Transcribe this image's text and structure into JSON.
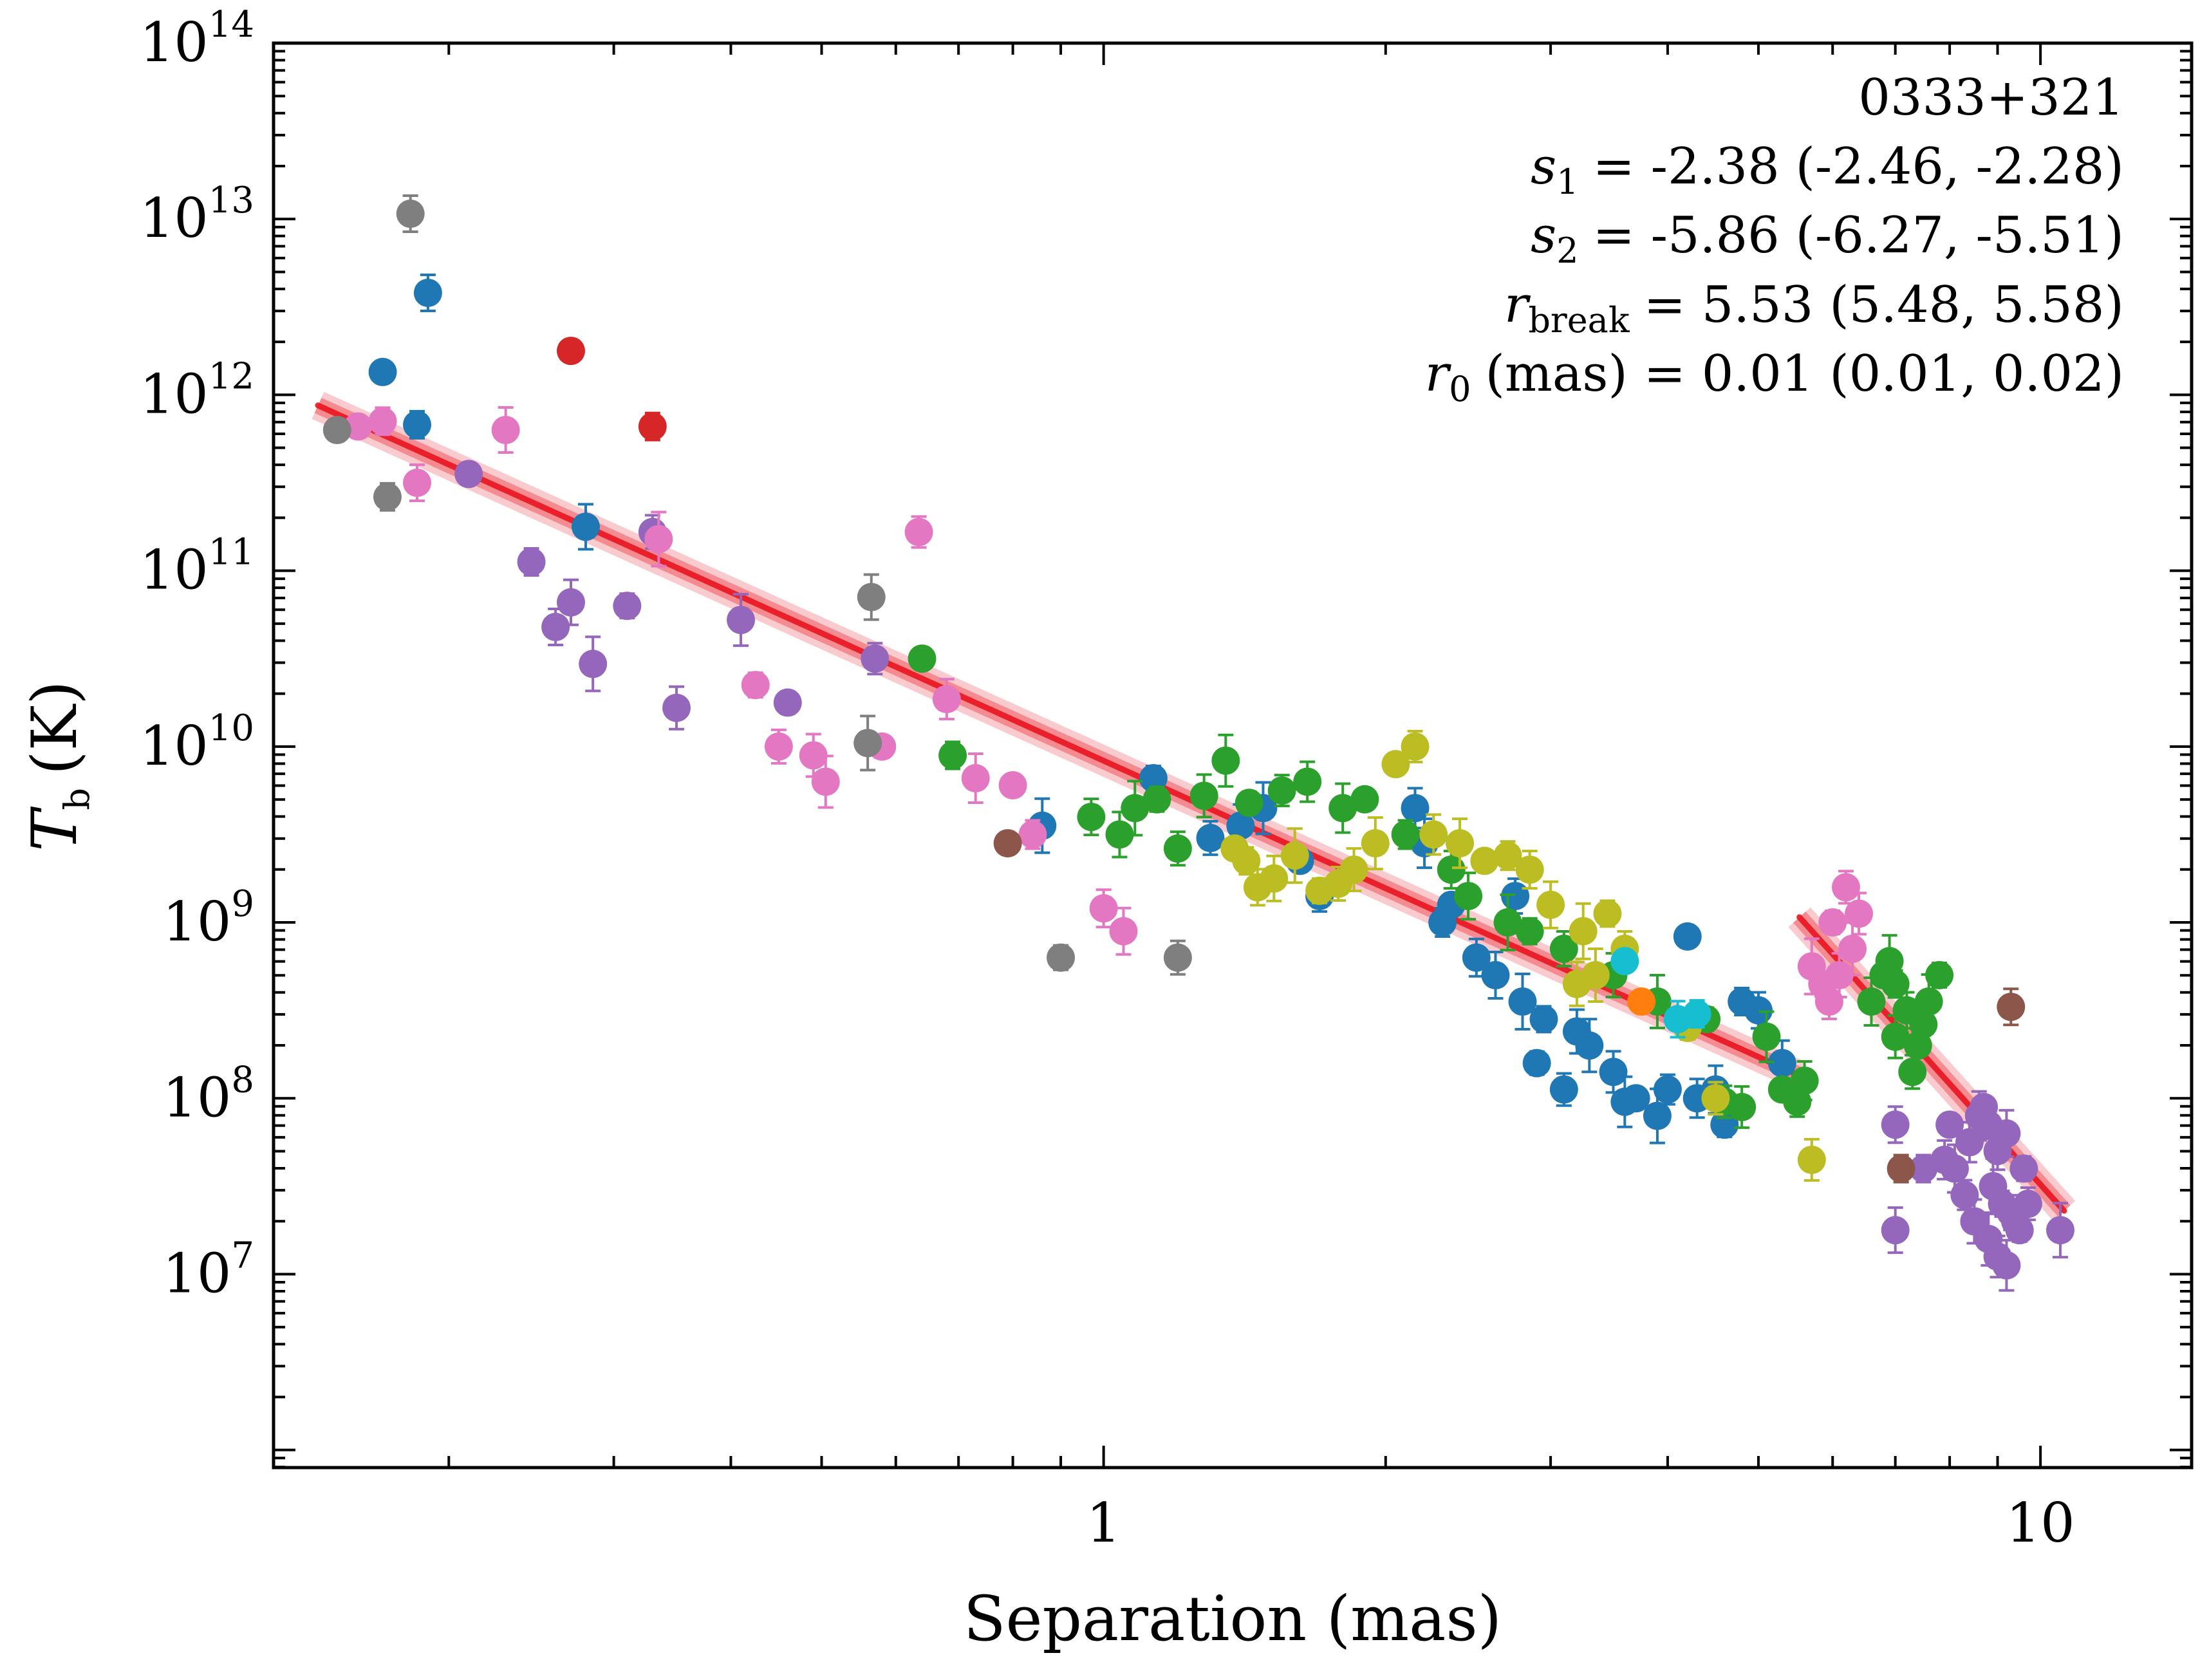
{
  "chart_data": {
    "type": "scatter",
    "source_label": "0333+321",
    "xlabel": "Separation (mas)",
    "ylabel": {
      "symbol": "T",
      "subscript": "b",
      "unit": "(K)"
    },
    "x_scale": "log",
    "y_scale": "log",
    "xlim": [
      0.13,
      14.5
    ],
    "ylim_log10": [
      5.9,
      14.0
    ],
    "x_ticks": [
      {
        "value": 1,
        "label": "1"
      },
      {
        "value": 10,
        "label": "10"
      }
    ],
    "y_ticks": [
      {
        "exp": 14,
        "base": "10",
        "sup": "14"
      },
      {
        "exp": 13,
        "base": "10",
        "sup": "13"
      },
      {
        "exp": 12,
        "base": "10",
        "sup": "12"
      },
      {
        "exp": 11,
        "base": "10",
        "sup": "11"
      },
      {
        "exp": 10,
        "base": "10",
        "sup": "10"
      },
      {
        "exp": 9,
        "base": "10",
        "sup": "9"
      },
      {
        "exp": 8,
        "base": "10",
        "sup": "8"
      },
      {
        "exp": 7,
        "base": "10",
        "sup": "7"
      }
    ],
    "annotations": {
      "source": "0333+321",
      "s1": {
        "sym": "s",
        "sub": "1",
        "text": "= -2.38 (-2.46, -2.28)"
      },
      "s2": {
        "sym": "s",
        "sub": "2",
        "text": "= -5.86 (-6.27, -5.51)"
      },
      "rbreak": {
        "sym": "r",
        "sub": "break",
        "text": "= 5.53 (5.48, 5.58)"
      },
      "r0": {
        "sym": "r",
        "sub": "0",
        "text": "(mas) = 0.01 (0.01, 0.02)"
      }
    },
    "fit": {
      "color": "#e8141e",
      "segments": [
        {
          "name": "inner",
          "x": [
            0.145,
            5.53
          ],
          "logy": [
            11.94,
            8.13
          ]
        },
        {
          "name": "outer",
          "x": [
            5.53,
            10.6
          ],
          "logy": [
            9.03,
            7.36
          ]
        }
      ]
    },
    "series": [
      {
        "name": "blue",
        "color": "#1f77b4",
        "points": [
          [
            0.17,
            12.13
          ],
          [
            0.185,
            11.83
          ],
          [
            0.19,
            12.58
          ],
          [
            0.28,
            11.25
          ],
          [
            0.86,
            9.55
          ],
          [
            1.13,
            9.82
          ],
          [
            1.3,
            9.48
          ],
          [
            1.4,
            9.55
          ],
          [
            1.48,
            9.65
          ],
          [
            1.62,
            9.35
          ],
          [
            1.7,
            9.15
          ],
          [
            2.15,
            9.65
          ],
          [
            2.2,
            9.45
          ],
          [
            2.35,
            9.1
          ],
          [
            2.3,
            9.0
          ],
          [
            2.5,
            8.8
          ],
          [
            2.62,
            8.7
          ],
          [
            2.8,
            8.55
          ],
          [
            2.95,
            8.45
          ],
          [
            2.75,
            9.15
          ],
          [
            3.2,
            8.38
          ],
          [
            3.3,
            8.3
          ],
          [
            2.9,
            8.2
          ],
          [
            3.1,
            8.05
          ],
          [
            3.5,
            8.15
          ],
          [
            3.6,
            7.98
          ],
          [
            3.7,
            8.0
          ],
          [
            4.0,
            8.05
          ],
          [
            4.3,
            8.0
          ],
          [
            4.5,
            8.05
          ],
          [
            4.2,
            8.92
          ],
          [
            4.8,
            8.55
          ],
          [
            5.0,
            8.5
          ],
          [
            5.3,
            8.2
          ],
          [
            3.9,
            7.9
          ],
          [
            4.6,
            7.85
          ]
        ]
      },
      {
        "name": "purple",
        "color": "#9467bd",
        "points": [
          [
            0.21,
            11.55
          ],
          [
            0.245,
            11.05
          ],
          [
            0.26,
            10.68
          ],
          [
            0.27,
            10.82
          ],
          [
            0.285,
            10.47
          ],
          [
            0.31,
            10.8
          ],
          [
            0.33,
            11.22
          ],
          [
            0.35,
            10.22
          ],
          [
            0.41,
            10.72
          ],
          [
            0.46,
            10.25
          ],
          [
            0.57,
            10.5
          ],
          [
            8.4,
            7.75
          ],
          [
            8.6,
            7.9
          ],
          [
            8.7,
            7.95
          ],
          [
            8.8,
            7.85
          ],
          [
            9.0,
            7.7
          ],
          [
            9.2,
            7.8
          ],
          [
            8.9,
            7.5
          ],
          [
            9.1,
            7.4
          ],
          [
            9.3,
            7.35
          ],
          [
            8.5,
            7.3
          ],
          [
            8.8,
            7.2
          ],
          [
            9.5,
            7.25
          ],
          [
            9.7,
            7.4
          ],
          [
            9.0,
            7.1
          ],
          [
            9.2,
            7.05
          ],
          [
            9.4,
            7.3
          ],
          [
            8.3,
            7.45
          ],
          [
            7.9,
            7.65
          ],
          [
            8.1,
            7.6
          ],
          [
            8.0,
            7.85
          ],
          [
            7.5,
            7.6
          ],
          [
            7.0,
            7.85
          ],
          [
            7.0,
            7.25
          ],
          [
            10.5,
            7.25
          ],
          [
            9.6,
            7.6
          ]
        ]
      },
      {
        "name": "pink",
        "color": "#e377c2",
        "points": [
          [
            0.16,
            11.82
          ],
          [
            0.17,
            11.85
          ],
          [
            0.185,
            11.5
          ],
          [
            0.23,
            11.8
          ],
          [
            0.335,
            11.18
          ],
          [
            0.425,
            10.35
          ],
          [
            0.45,
            10.0
          ],
          [
            0.49,
            9.95
          ],
          [
            0.505,
            9.8
          ],
          [
            0.58,
            10.0
          ],
          [
            0.635,
            11.22
          ],
          [
            0.68,
            10.27
          ],
          [
            0.73,
            9.82
          ],
          [
            0.8,
            9.78
          ],
          [
            0.84,
            9.5
          ],
          [
            1.0,
            9.08
          ],
          [
            1.05,
            8.95
          ],
          [
            5.7,
            8.75
          ],
          [
            5.85,
            8.65
          ],
          [
            5.95,
            8.55
          ],
          [
            6.1,
            8.7
          ],
          [
            6.3,
            8.85
          ],
          [
            6.0,
            9.0
          ],
          [
            6.2,
            9.2
          ],
          [
            6.4,
            9.05
          ]
        ]
      },
      {
        "name": "green",
        "color": "#2ca02c",
        "points": [
          [
            0.64,
            10.5
          ],
          [
            0.69,
            9.95
          ],
          [
            0.97,
            9.6
          ],
          [
            1.04,
            9.5
          ],
          [
            1.08,
            9.65
          ],
          [
            1.14,
            9.7
          ],
          [
            1.2,
            9.42
          ],
          [
            1.28,
            9.72
          ],
          [
            1.35,
            9.92
          ],
          [
            1.43,
            9.68
          ],
          [
            1.55,
            9.75
          ],
          [
            1.65,
            9.8
          ],
          [
            1.8,
            9.65
          ],
          [
            1.9,
            9.7
          ],
          [
            2.1,
            9.5
          ],
          [
            2.35,
            9.3
          ],
          [
            2.45,
            9.15
          ],
          [
            2.7,
            9.0
          ],
          [
            2.85,
            8.95
          ],
          [
            3.1,
            8.85
          ],
          [
            3.5,
            8.7
          ],
          [
            3.9,
            8.55
          ],
          [
            4.4,
            8.45
          ],
          [
            4.6,
            7.98
          ],
          [
            4.8,
            7.95
          ],
          [
            5.1,
            8.35
          ],
          [
            5.3,
            8.05
          ],
          [
            5.5,
            7.98
          ],
          [
            5.6,
            8.1
          ],
          [
            6.6,
            8.55
          ],
          [
            6.8,
            8.7
          ],
          [
            7.0,
            8.65
          ],
          [
            7.2,
            8.5
          ],
          [
            7.4,
            8.3
          ],
          [
            7.6,
            8.55
          ],
          [
            7.8,
            8.7
          ],
          [
            7.3,
            8.15
          ],
          [
            7.0,
            8.35
          ],
          [
            6.9,
            8.78
          ],
          [
            7.5,
            8.42
          ]
        ]
      },
      {
        "name": "olive",
        "color": "#bcbd22",
        "points": [
          [
            1.38,
            9.42
          ],
          [
            1.42,
            9.35
          ],
          [
            1.46,
            9.2
          ],
          [
            1.52,
            9.25
          ],
          [
            1.6,
            9.38
          ],
          [
            1.7,
            9.18
          ],
          [
            1.78,
            9.22
          ],
          [
            1.85,
            9.3
          ],
          [
            1.95,
            9.45
          ],
          [
            2.05,
            9.9
          ],
          [
            2.15,
            10.0
          ],
          [
            2.25,
            9.5
          ],
          [
            2.4,
            9.45
          ],
          [
            2.55,
            9.35
          ],
          [
            2.7,
            9.38
          ],
          [
            2.85,
            9.3
          ],
          [
            3.0,
            9.1
          ],
          [
            3.25,
            8.95
          ],
          [
            3.45,
            9.05
          ],
          [
            3.6,
            8.85
          ],
          [
            3.2,
            8.65
          ],
          [
            3.35,
            8.7
          ],
          [
            4.2,
            8.4
          ],
          [
            4.5,
            8.0
          ],
          [
            5.7,
            7.65
          ]
        ]
      },
      {
        "name": "gray",
        "color": "#7f7f7f",
        "points": [
          [
            0.152,
            11.8
          ],
          [
            0.172,
            11.42
          ],
          [
            0.182,
            13.03
          ],
          [
            0.565,
            10.85
          ],
          [
            0.56,
            10.02
          ],
          [
            0.9,
            8.8
          ],
          [
            1.2,
            8.8
          ]
        ]
      },
      {
        "name": "red",
        "color": "#d62728",
        "points": [
          [
            0.27,
            12.25
          ],
          [
            0.33,
            11.82
          ]
        ]
      },
      {
        "name": "brown",
        "color": "#8c564b",
        "points": [
          [
            0.79,
            9.45
          ],
          [
            7.1,
            7.6
          ],
          [
            9.3,
            8.52
          ]
        ]
      },
      {
        "name": "cyan",
        "color": "#17becf",
        "points": [
          [
            3.6,
            8.78
          ],
          [
            4.3,
            8.48
          ],
          [
            4.1,
            8.45
          ]
        ]
      },
      {
        "name": "orange",
        "color": "#ff7f0e",
        "points": [
          [
            3.75,
            8.55
          ]
        ]
      }
    ]
  }
}
